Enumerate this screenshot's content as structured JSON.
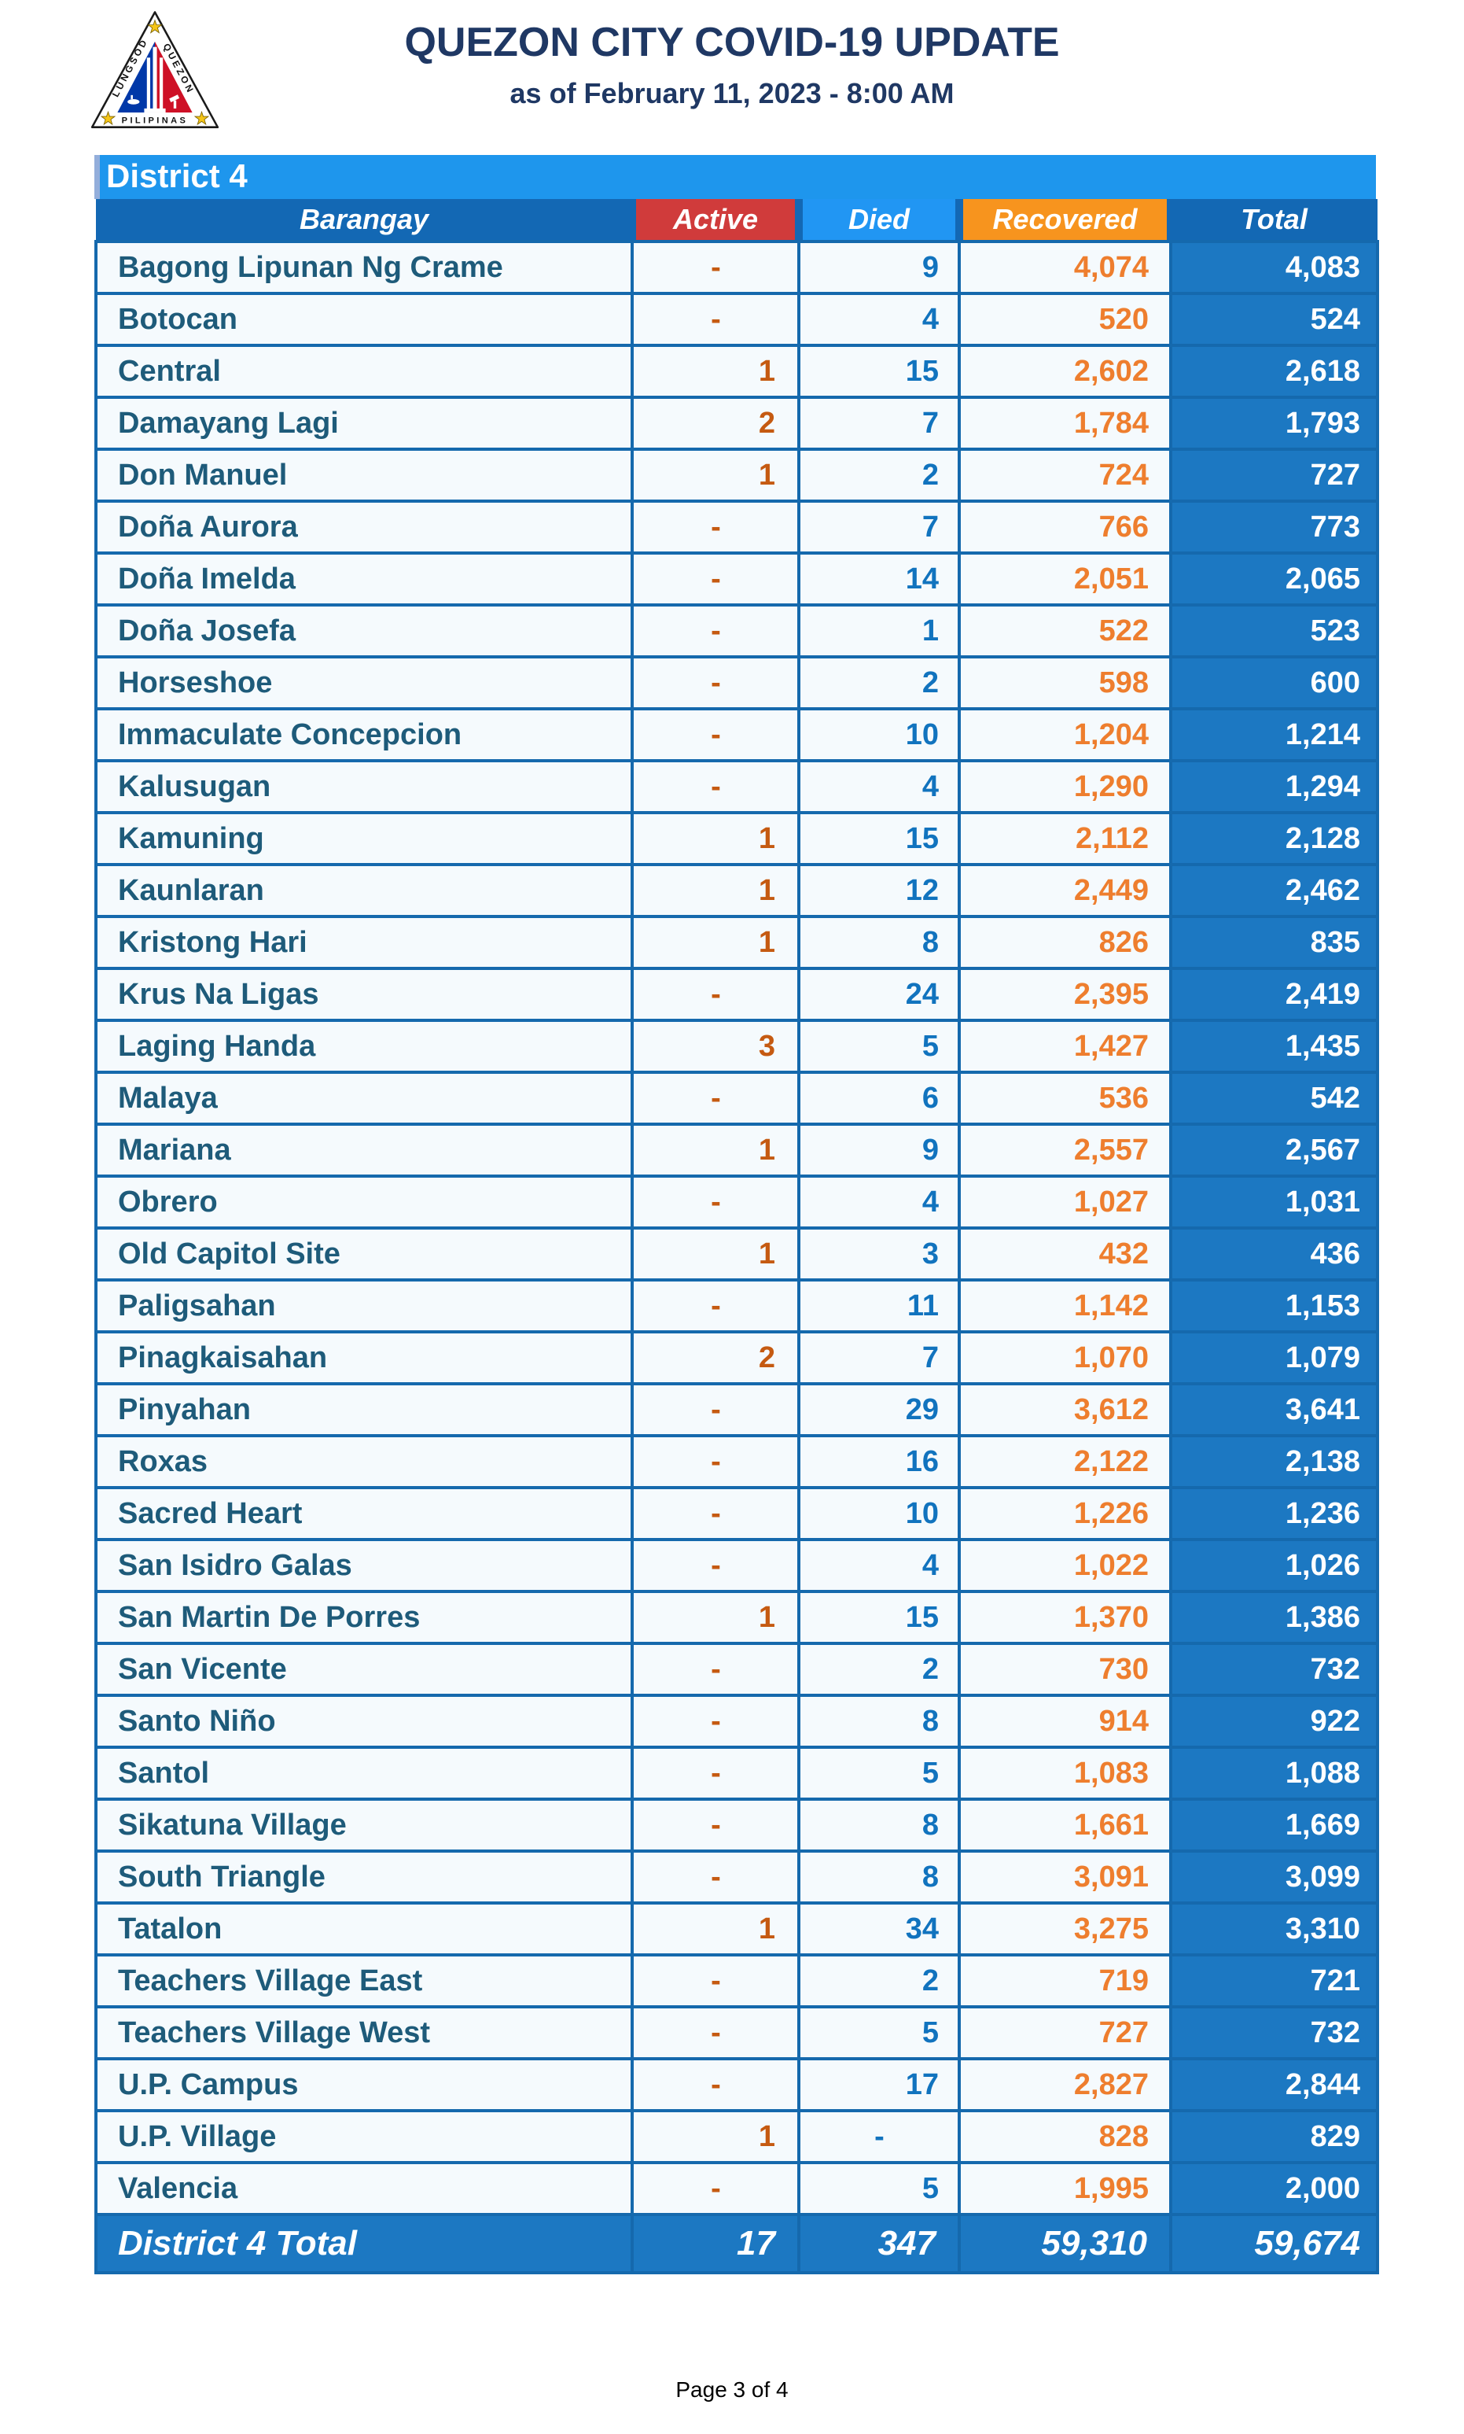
{
  "header": {
    "title": "QUEZON CITY COVID-19 UPDATE",
    "subtitle": "as of February 11, 2023 - 8:00 AM",
    "logo": {
      "left_text": "LUNGSOD",
      "right_text": "QUEZON",
      "bottom_text": "PILIPINAS"
    }
  },
  "table": {
    "district_label": "District 4",
    "columns": [
      "Barangay",
      "Active",
      "Died",
      "Recovered",
      "Total"
    ],
    "rows": [
      {
        "name": "Bagong Lipunan Ng Crame",
        "active": "-",
        "died": "9",
        "recovered": "4,074",
        "total": "4,083"
      },
      {
        "name": "Botocan",
        "active": "-",
        "died": "4",
        "recovered": "520",
        "total": "524"
      },
      {
        "name": "Central",
        "active": "1",
        "died": "15",
        "recovered": "2,602",
        "total": "2,618"
      },
      {
        "name": "Damayang Lagi",
        "active": "2",
        "died": "7",
        "recovered": "1,784",
        "total": "1,793"
      },
      {
        "name": "Don Manuel",
        "active": "1",
        "died": "2",
        "recovered": "724",
        "total": "727"
      },
      {
        "name": "Doña Aurora",
        "active": "-",
        "died": "7",
        "recovered": "766",
        "total": "773"
      },
      {
        "name": "Doña Imelda",
        "active": "-",
        "died": "14",
        "recovered": "2,051",
        "total": "2,065"
      },
      {
        "name": "Doña Josefa",
        "active": "-",
        "died": "1",
        "recovered": "522",
        "total": "523"
      },
      {
        "name": "Horseshoe",
        "active": "-",
        "died": "2",
        "recovered": "598",
        "total": "600"
      },
      {
        "name": "Immaculate Concepcion",
        "active": "-",
        "died": "10",
        "recovered": "1,204",
        "total": "1,214"
      },
      {
        "name": "Kalusugan",
        "active": "-",
        "died": "4",
        "recovered": "1,290",
        "total": "1,294"
      },
      {
        "name": "Kamuning",
        "active": "1",
        "died": "15",
        "recovered": "2,112",
        "total": "2,128"
      },
      {
        "name": "Kaunlaran",
        "active": "1",
        "died": "12",
        "recovered": "2,449",
        "total": "2,462"
      },
      {
        "name": "Kristong Hari",
        "active": "1",
        "died": "8",
        "recovered": "826",
        "total": "835"
      },
      {
        "name": "Krus Na Ligas",
        "active": "-",
        "died": "24",
        "recovered": "2,395",
        "total": "2,419"
      },
      {
        "name": "Laging Handa",
        "active": "3",
        "died": "5",
        "recovered": "1,427",
        "total": "1,435"
      },
      {
        "name": "Malaya",
        "active": "-",
        "died": "6",
        "recovered": "536",
        "total": "542"
      },
      {
        "name": "Mariana",
        "active": "1",
        "died": "9",
        "recovered": "2,557",
        "total": "2,567"
      },
      {
        "name": "Obrero",
        "active": "-",
        "died": "4",
        "recovered": "1,027",
        "total": "1,031"
      },
      {
        "name": "Old Capitol Site",
        "active": "1",
        "died": "3",
        "recovered": "432",
        "total": "436"
      },
      {
        "name": "Paligsahan",
        "active": "-",
        "died": "11",
        "recovered": "1,142",
        "total": "1,153"
      },
      {
        "name": "Pinagkaisahan",
        "active": "2",
        "died": "7",
        "recovered": "1,070",
        "total": "1,079"
      },
      {
        "name": "Pinyahan",
        "active": "-",
        "died": "29",
        "recovered": "3,612",
        "total": "3,641"
      },
      {
        "name": "Roxas",
        "active": "-",
        "died": "16",
        "recovered": "2,122",
        "total": "2,138"
      },
      {
        "name": "Sacred Heart",
        "active": "-",
        "died": "10",
        "recovered": "1,226",
        "total": "1,236"
      },
      {
        "name": "San Isidro Galas",
        "active": "-",
        "died": "4",
        "recovered": "1,022",
        "total": "1,026"
      },
      {
        "name": "San Martin De Porres",
        "active": "1",
        "died": "15",
        "recovered": "1,370",
        "total": "1,386"
      },
      {
        "name": "San Vicente",
        "active": "-",
        "died": "2",
        "recovered": "730",
        "total": "732"
      },
      {
        "name": "Santo Niño",
        "active": "-",
        "died": "8",
        "recovered": "914",
        "total": "922"
      },
      {
        "name": "Santol",
        "active": "-",
        "died": "5",
        "recovered": "1,083",
        "total": "1,088"
      },
      {
        "name": "Sikatuna Village",
        "active": "-",
        "died": "8",
        "recovered": "1,661",
        "total": "1,669"
      },
      {
        "name": "South Triangle",
        "active": "-",
        "died": "8",
        "recovered": "3,091",
        "total": "3,099"
      },
      {
        "name": "Tatalon",
        "active": "1",
        "died": "34",
        "recovered": "3,275",
        "total": "3,310"
      },
      {
        "name": "Teachers Village East",
        "active": "-",
        "died": "2",
        "recovered": "719",
        "total": "721"
      },
      {
        "name": "Teachers Village West",
        "active": "-",
        "died": "5",
        "recovered": "727",
        "total": "732"
      },
      {
        "name": "U.P. Campus",
        "active": "-",
        "died": "17",
        "recovered": "2,827",
        "total": "2,844"
      },
      {
        "name": "U.P. Village",
        "active": "1",
        "died": "-",
        "recovered": "828",
        "total": "829"
      },
      {
        "name": "Valencia",
        "active": "-",
        "died": "5",
        "recovered": "1,995",
        "total": "2,000"
      }
    ],
    "total_row": {
      "label": "District 4 Total",
      "active": "17",
      "died": "347",
      "recovered": "59,310",
      "total": "59,674"
    }
  },
  "footer": {
    "page_label": "Page 3 of 4"
  },
  "colors": {
    "banner_blue": "#1E96ED",
    "header_blue": "#1368B4",
    "active_red": "#D03B3B",
    "died_blue": "#2196F3",
    "recovered_orange": "#F7941E",
    "grid_border_blue": "#1569AD",
    "total_column_blue": "#1C78C2",
    "barangay_text": "#1E5B7A",
    "active_value_text": "#C55A11",
    "died_value_text": "#1173BE",
    "recovered_value_text": "#EE7E2E",
    "title_navy": "#1F3864"
  }
}
